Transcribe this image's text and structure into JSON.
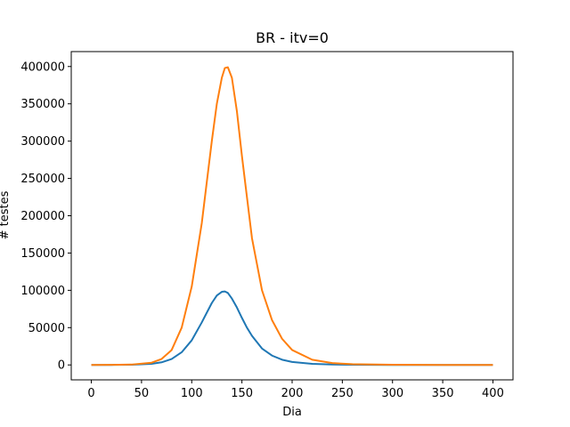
{
  "chart_data": {
    "type": "line",
    "title": "BR - itv=0",
    "xlabel": "Dia",
    "ylabel": "# testes",
    "xlim": [
      -20,
      420
    ],
    "ylim": [
      -20000,
      420000
    ],
    "xticks": [
      0,
      50,
      100,
      150,
      200,
      250,
      300,
      350,
      400
    ],
    "yticks": [
      0,
      50000,
      100000,
      150000,
      200000,
      250000,
      300000,
      350000,
      400000
    ],
    "grid": false,
    "series": [
      {
        "color": "#1f77b4",
        "x": [
          0,
          20,
          40,
          60,
          70,
          80,
          90,
          100,
          110,
          115,
          120,
          125,
          130,
          133,
          136,
          140,
          145,
          150,
          155,
          160,
          170,
          180,
          190,
          200,
          220,
          240,
          260,
          300,
          350,
          400
        ],
        "y": [
          0,
          50,
          300,
          1500,
          3500,
          8000,
          17000,
          33000,
          57000,
          70000,
          83000,
          93000,
          98000,
          98500,
          96500,
          89000,
          77000,
          63000,
          50000,
          39000,
          22000,
          12500,
          7000,
          4000,
          1500,
          600,
          250,
          50,
          10,
          0
        ]
      },
      {
        "color": "#ff7f0e",
        "x": [
          0,
          20,
          40,
          60,
          70,
          80,
          90,
          100,
          110,
          115,
          120,
          125,
          130,
          133,
          136,
          140,
          145,
          150,
          155,
          160,
          170,
          180,
          190,
          200,
          220,
          240,
          260,
          300,
          350,
          400
        ],
        "y": [
          0,
          100,
          500,
          3000,
          8000,
          20000,
          50000,
          105000,
          190000,
          245000,
          300000,
          350000,
          385000,
          398000,
          399000,
          385000,
          340000,
          280000,
          225000,
          170000,
          100000,
          60000,
          35000,
          20000,
          7000,
          2500,
          1000,
          200,
          30,
          0
        ]
      }
    ]
  }
}
